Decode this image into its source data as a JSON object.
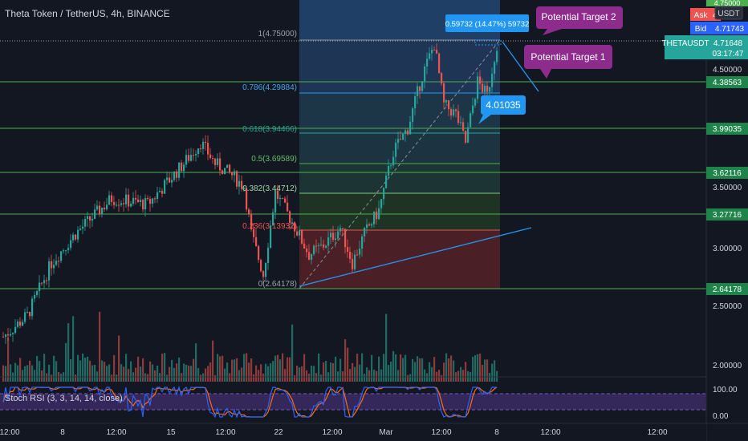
{
  "header": {
    "symbol_title": "Theta Token / TetherUS, 4h, BINANCE",
    "quote_currency": "USDT",
    "ask_label": "Ask",
    "ask_value": "4.",
    "bid_label": "Bid",
    "bid_value": "4.71743",
    "top_price": "4.75000"
  },
  "colors": {
    "background": "#131722",
    "up": "#26a69a",
    "down": "#ef5350",
    "level_line": "#4caf50",
    "level_tag": "#1e8449",
    "fib_blue": "#2196f3",
    "annotation_purple": "#8e2c8e",
    "rsi_k": "#2962ff",
    "rsi_d": "#ff6d00",
    "rsi_band": "#7e57c2"
  },
  "chart_data": {
    "type": "candlestick",
    "title": "Theta Token / TetherUS, 4h, BINANCE",
    "ylim": [
      1.86,
      4.87
    ],
    "y_ticks": [
      "4.50000",
      "3.50000",
      "3.00000",
      "2.50000",
      "2.00000"
    ],
    "x_ticks": [
      "12:00",
      "8",
      "12:00",
      "15",
      "12:00",
      "22",
      "12:00",
      "Mar",
      "12:00",
      "8",
      "12:00",
      "12:00"
    ],
    "last_price": {
      "value": "4.71648",
      "symbol": "THETAUSDT",
      "countdown": "03:17:47"
    },
    "support_resistance_levels": [
      {
        "label": "4.38563",
        "value": 4.38563
      },
      {
        "label": "3.99035",
        "value": 3.99035
      },
      {
        "label": "3.62116",
        "value": 3.62116
      },
      {
        "label": "3.27716",
        "value": 3.27716
      },
      {
        "label": "2.64178",
        "value": 2.64178
      }
    ],
    "fibonacci": [
      {
        "label": "1(4.75000)",
        "value": 4.75
      },
      {
        "label": "0.786(4.29884)",
        "value": 4.29884
      },
      {
        "label": "0.618(3.94466)",
        "value": 3.94466
      },
      {
        "label": "0.5(3.69589)",
        "value": 3.69589
      },
      {
        "label": "0.382(3.44712)",
        "value": 3.44712
      },
      {
        "label": "0.236(3.13932)",
        "value": 3.13932
      },
      {
        "label": "0(2.64178)",
        "value": 2.64178
      }
    ],
    "annotations": {
      "measure_label": "0.59732 (14.47%) 59732",
      "target_1": "Potential Target 1",
      "target_2": "Potential Target 2",
      "price_callout": "4.01035"
    },
    "anchor_points": [
      {
        "bar": 0,
        "close": 2.22
      },
      {
        "bar": 10,
        "close": 2.4
      },
      {
        "bar": 20,
        "close": 2.85
      },
      {
        "bar": 30,
        "close": 3.1
      },
      {
        "bar": 45,
        "close": 3.4
      },
      {
        "bar": 60,
        "close": 3.35
      },
      {
        "bar": 75,
        "close": 3.7
      },
      {
        "bar": 82,
        "close": 3.88
      },
      {
        "bar": 88,
        "close": 3.7
      },
      {
        "bar": 95,
        "close": 3.6
      },
      {
        "bar": 100,
        "close": 3.5
      },
      {
        "bar": 103,
        "close": 3.1
      },
      {
        "bar": 108,
        "close": 2.75
      },
      {
        "bar": 113,
        "close": 3.45
      },
      {
        "bar": 120,
        "close": 3.2
      },
      {
        "bar": 127,
        "close": 2.92
      },
      {
        "bar": 133,
        "close": 3.0
      },
      {
        "bar": 140,
        "close": 3.15
      },
      {
        "bar": 145,
        "close": 2.85
      },
      {
        "bar": 150,
        "close": 3.1
      },
      {
        "bar": 156,
        "close": 3.3
      },
      {
        "bar": 162,
        "close": 3.8
      },
      {
        "bar": 168,
        "close": 4.0
      },
      {
        "bar": 174,
        "close": 4.45
      },
      {
        "bar": 179,
        "close": 4.72
      },
      {
        "bar": 183,
        "close": 4.2
      },
      {
        "bar": 188,
        "close": 4.12
      },
      {
        "bar": 192,
        "close": 3.88
      },
      {
        "bar": 197,
        "close": 4.4
      },
      {
        "bar": 201,
        "close": 4.28
      },
      {
        "bar": 205,
        "close": 4.72
      }
    ],
    "indicator": {
      "name": "Stoch RSI (3, 3, 14, 14, close)",
      "ticks": [
        "100.00",
        "0.00"
      ],
      "ylim": [
        0,
        100
      ]
    }
  }
}
